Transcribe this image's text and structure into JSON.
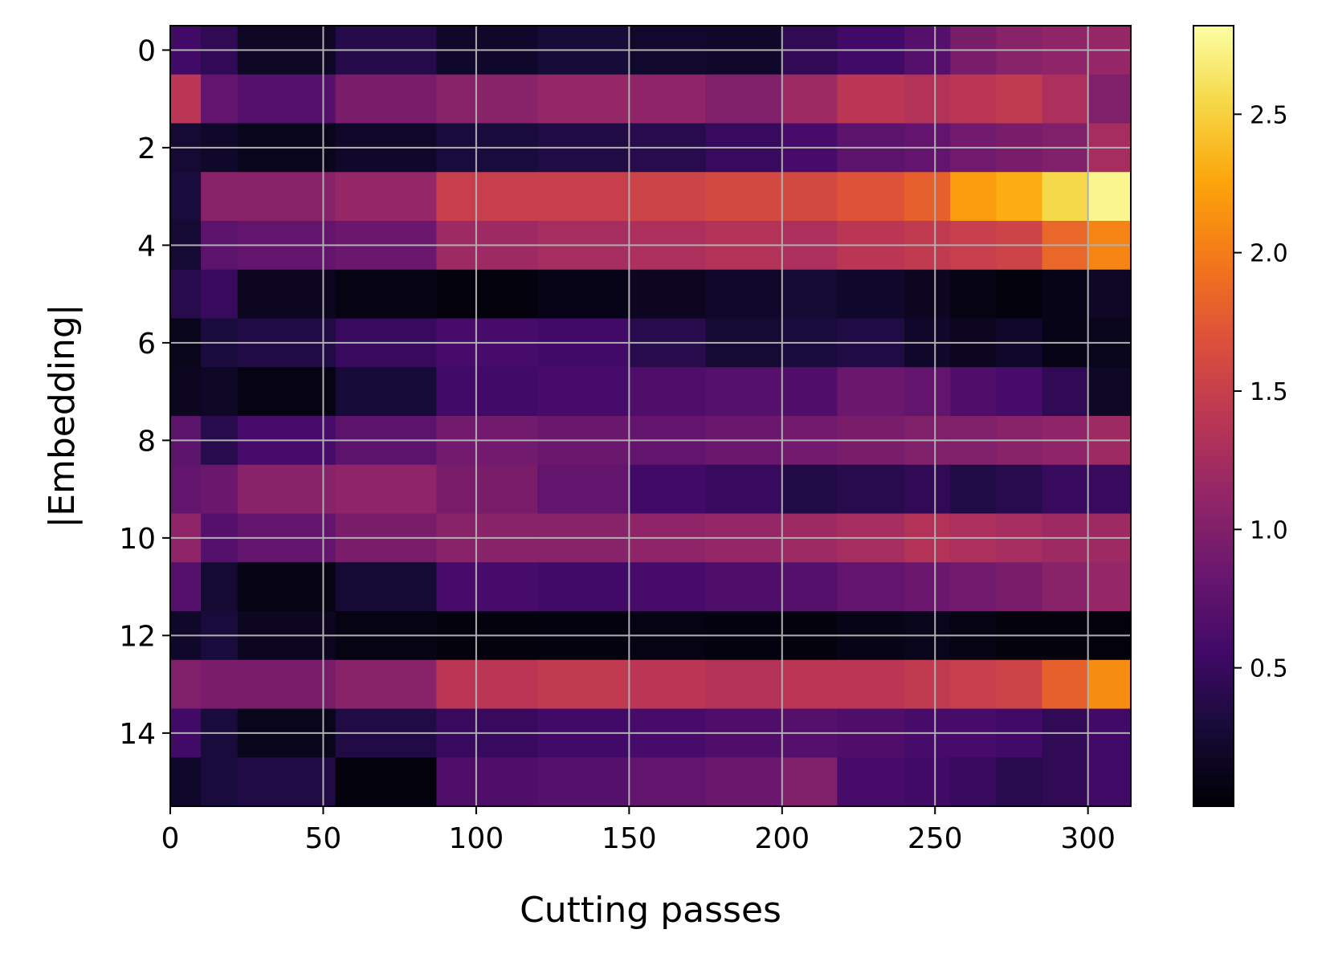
{
  "chart_data": {
    "type": "heatmap",
    "xlabel": "Cutting passes",
    "ylabel": "|Embedding|",
    "xlim": [
      0,
      314
    ],
    "ylim": [
      15.5,
      -0.5
    ],
    "xticks": [
      0,
      50,
      100,
      150,
      200,
      250,
      300
    ],
    "yticks": [
      0,
      2,
      4,
      6,
      8,
      10,
      12,
      14
    ],
    "grid": true,
    "colormap": "inferno",
    "colorbar": {
      "range": [
        0.0,
        2.82
      ],
      "ticks": [
        0.5,
        1.0,
        1.5,
        2.0,
        2.5
      ]
    },
    "rows": 16,
    "column_edges": [
      0,
      10,
      22,
      54,
      87,
      120,
      150,
      175,
      200,
      218,
      240,
      255,
      270,
      285,
      300,
      314
    ],
    "values": [
      [
        0.55,
        0.45,
        0.18,
        0.38,
        0.2,
        0.28,
        0.22,
        0.2,
        0.45,
        0.55,
        0.7,
        0.95,
        1.05,
        1.1,
        1.15
      ],
      [
        1.4,
        0.8,
        0.7,
        0.95,
        1.05,
        1.15,
        1.1,
        1.0,
        1.2,
        1.4,
        1.35,
        1.4,
        1.45,
        1.3,
        1.0
      ],
      [
        0.25,
        0.2,
        0.12,
        0.2,
        0.3,
        0.35,
        0.4,
        0.5,
        0.6,
        0.75,
        0.8,
        0.9,
        0.95,
        1.0,
        1.25
      ],
      [
        0.3,
        1.05,
        1.05,
        1.15,
        1.5,
        1.5,
        1.55,
        1.6,
        1.6,
        1.7,
        1.8,
        2.2,
        2.3,
        2.55,
        2.75
      ],
      [
        0.25,
        0.75,
        0.8,
        0.85,
        1.2,
        1.25,
        1.3,
        1.35,
        1.3,
        1.4,
        1.45,
        1.5,
        1.55,
        1.85,
        2.05
      ],
      [
        0.4,
        0.5,
        0.15,
        0.08,
        0.05,
        0.1,
        0.15,
        0.2,
        0.25,
        0.2,
        0.15,
        0.08,
        0.05,
        0.1,
        0.18
      ],
      [
        0.12,
        0.3,
        0.35,
        0.5,
        0.6,
        0.55,
        0.4,
        0.25,
        0.3,
        0.35,
        0.2,
        0.15,
        0.2,
        0.1,
        0.12
      ],
      [
        0.15,
        0.18,
        0.08,
        0.28,
        0.55,
        0.6,
        0.65,
        0.7,
        0.65,
        0.85,
        0.8,
        0.65,
        0.6,
        0.45,
        0.18
      ],
      [
        0.75,
        0.4,
        0.6,
        0.75,
        0.9,
        0.85,
        0.8,
        0.85,
        0.9,
        0.95,
        1.0,
        1.0,
        1.05,
        1.1,
        1.2
      ],
      [
        0.8,
        0.85,
        1.05,
        1.1,
        0.95,
        0.8,
        0.55,
        0.5,
        0.35,
        0.4,
        0.45,
        0.35,
        0.4,
        0.5,
        0.5
      ],
      [
        1.1,
        0.7,
        0.8,
        0.95,
        1.05,
        1.05,
        1.1,
        1.15,
        1.2,
        1.25,
        1.35,
        1.3,
        1.25,
        1.2,
        1.2
      ],
      [
        0.7,
        0.25,
        0.08,
        0.25,
        0.6,
        0.55,
        0.6,
        0.65,
        0.7,
        0.8,
        0.85,
        0.9,
        0.95,
        1.05,
        1.15
      ],
      [
        0.2,
        0.3,
        0.15,
        0.08,
        0.05,
        0.06,
        0.08,
        0.06,
        0.05,
        0.1,
        0.12,
        0.08,
        0.05,
        0.05,
        0.04
      ],
      [
        1.0,
        0.95,
        0.95,
        1.05,
        1.4,
        1.45,
        1.4,
        1.35,
        1.4,
        1.4,
        1.45,
        1.5,
        1.55,
        1.8,
        2.1
      ],
      [
        0.55,
        0.3,
        0.12,
        0.35,
        0.5,
        0.55,
        0.6,
        0.65,
        0.7,
        0.65,
        0.6,
        0.6,
        0.55,
        0.45,
        0.55
      ],
      [
        0.2,
        0.3,
        0.35,
        0.05,
        0.65,
        0.7,
        0.8,
        0.85,
        1.0,
        0.6,
        0.55,
        0.5,
        0.4,
        0.45,
        0.55
      ]
    ]
  }
}
